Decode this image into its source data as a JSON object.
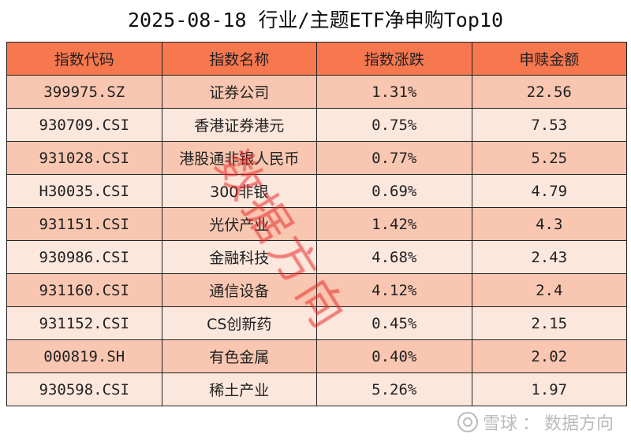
{
  "title": "2025-08-18 行业/主题ETF净申购Top10",
  "chart_data": {
    "type": "table",
    "title": "2025-08-18 行业/主题ETF净申购Top10",
    "columns": [
      "指数代码",
      "指数名称",
      "指数涨跌",
      "申赎金额"
    ],
    "rows": [
      [
        "399975.SZ",
        "证券公司",
        "1.31%",
        "22.56"
      ],
      [
        "930709.CSI",
        "香港证券港元",
        "0.75%",
        "7.53"
      ],
      [
        "931028.CSI",
        "港股通非银人民币",
        "0.77%",
        "5.25"
      ],
      [
        "H30035.CSI",
        "300非银",
        "0.69%",
        "4.79"
      ],
      [
        "931151.CSI",
        "光伏产业",
        "1.42%",
        "4.3"
      ],
      [
        "930986.CSI",
        "金融科技",
        "4.68%",
        "2.43"
      ],
      [
        "931160.CSI",
        "通信设备",
        "4.12%",
        "2.4"
      ],
      [
        "931152.CSI",
        "CS创新药",
        "0.45%",
        "2.15"
      ],
      [
        "000819.SH",
        "有色金属",
        "0.40%",
        "2.02"
      ],
      [
        "930598.CSI",
        "稀土产业",
        "5.26%",
        "1.97"
      ]
    ]
  },
  "colors": {
    "header": "#F7774F",
    "row_odd": "#F9C7B1",
    "row_even": "#FCE7DD",
    "watermark": "#E62828"
  },
  "watermark": "数据方向",
  "footer": {
    "brand": "雪球",
    "separator": "：",
    "author": "数据方向",
    "logo_icon": "snowball-logo-icon"
  }
}
